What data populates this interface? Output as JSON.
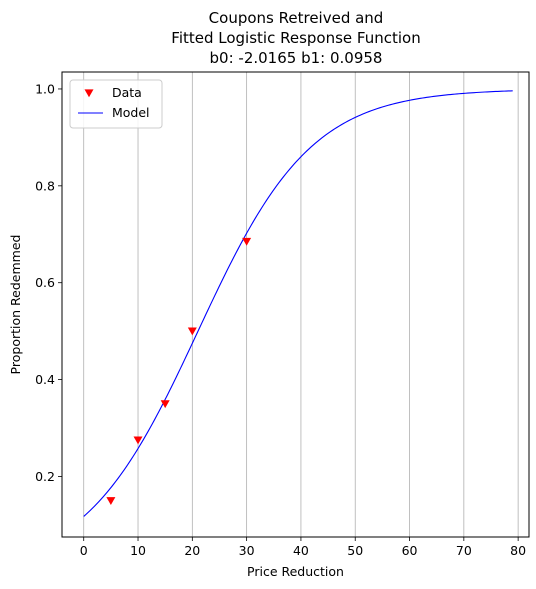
{
  "chart_data": {
    "type": "scatter",
    "title_lines": [
      "Coupons Retreived and",
      "Fitted Logistic Response Function",
      "b0: -2.0165 b1: 0.0958"
    ],
    "xlabel": "Price Reduction",
    "ylabel": "Proportion Redemmed",
    "xlim": [
      -4,
      82
    ],
    "ylim": [
      0.075,
      1.035
    ],
    "xticks": [
      0,
      10,
      20,
      30,
      40,
      50,
      60,
      70,
      80
    ],
    "xtick_labels": [
      "0",
      "10",
      "20",
      "30",
      "40",
      "50",
      "60",
      "70",
      "80"
    ],
    "yticks": [
      0.2,
      0.4,
      0.6,
      0.8,
      1.0
    ],
    "ytick_labels": [
      "0.2",
      "0.4",
      "0.6",
      "0.8",
      "1.0"
    ],
    "grid": "vertical",
    "legend_position": "top-left",
    "series": [
      {
        "name": "Data",
        "kind": "markers",
        "marker": "triangle-down",
        "color": "#ff0000",
        "x": [
          5,
          10,
          15,
          20,
          30
        ],
        "y": [
          0.15,
          0.275,
          0.35,
          0.5,
          0.685
        ]
      },
      {
        "name": "Model",
        "kind": "line",
        "color": "#0000ff",
        "function": "logistic",
        "b0": -2.0165,
        "b1": 0.0958,
        "x_range": [
          0,
          79
        ]
      }
    ]
  }
}
